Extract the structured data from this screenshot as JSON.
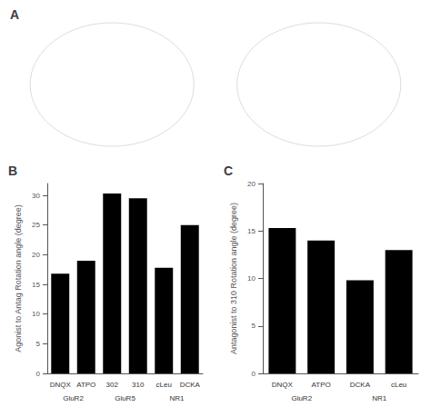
{
  "chart_data": [
    {
      "type": "placeholder",
      "title": "A"
    },
    {
      "type": "bar",
      "title": "B",
      "categories": [
        "DNQX",
        "ATPO",
        "302",
        "310",
        "cLeu",
        "DCKA"
      ],
      "values": [
        16.8,
        19.0,
        30.3,
        29.5,
        17.8,
        25.0
      ],
      "annotations": [
        "GluR2",
        "GluR5",
        "NR1"
      ],
      "ylabel": "Agonist to Antag Rotation angle (degree)",
      "ylim": [
        0,
        32
      ],
      "yticks": [
        0,
        5,
        10,
        15,
        20,
        25,
        30
      ],
      "color": "#000000",
      "grid": false
    },
    {
      "type": "bar",
      "title": "C",
      "categories": [
        "DNQX",
        "ATPO",
        "DCKA",
        "cLeu"
      ],
      "values": [
        15.3,
        14.0,
        9.8,
        13.0
      ],
      "annotations": [
        "GluR2",
        "NR1"
      ],
      "ylabel": "Antagonist to 310 Rotation angle (degree)",
      "ylim": [
        0,
        20
      ],
      "yticks": [
        0,
        5,
        10,
        15,
        20
      ],
      "color": "#000000",
      "grid": false
    }
  ]
}
